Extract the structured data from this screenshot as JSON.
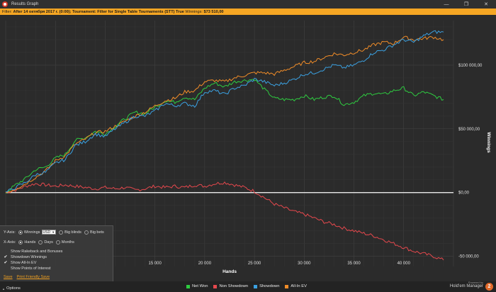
{
  "window": {
    "title": "Results Graph",
    "minimize_glyph": "—",
    "restore_glyph": "❐",
    "close_glyph": "✕"
  },
  "filter": {
    "prefix": "Filter:",
    "text": "After 14 октября 2017 г. (0:00); Tournament: Filter for Single Table Tournaments (STT) True",
    "winnings_label": "Winnings:",
    "winnings_value": "$73 510,00"
  },
  "chart_data": {
    "type": "line",
    "xlabel": "Hands",
    "ylabel": "Winnings",
    "xlim": [
      0,
      45000
    ],
    "ylim": [
      -58000,
      135000
    ],
    "x_ticks": [
      15000,
      20000,
      25000,
      30000,
      35000,
      40000
    ],
    "x_tick_labels": [
      "15 000",
      "20 000",
      "25 000",
      "30 000",
      "35 000",
      "40 000"
    ],
    "y_ticks": [
      -50000,
      0,
      50000,
      100000
    ],
    "y_tick_labels": [
      "-50 000,00",
      "$0,00",
      "$50 000,00",
      "$100 000,00"
    ],
    "grid": true,
    "legend_position": "bottom",
    "x": [
      0,
      1000,
      2000,
      3000,
      4000,
      5000,
      6000,
      7000,
      8000,
      9000,
      10000,
      11000,
      12000,
      13000,
      14000,
      15000,
      16000,
      17000,
      18000,
      19000,
      20000,
      21000,
      22000,
      23000,
      24000,
      25000,
      26000,
      27000,
      28000,
      29000,
      30000,
      31000,
      32000,
      33000,
      34000,
      35000,
      36000,
      37000,
      38000,
      39000,
      40000,
      41000,
      42000,
      43000,
      44000
    ],
    "series": [
      {
        "name": "Net Won",
        "color": "#2ecc40",
        "values": [
          0,
          6000,
          11000,
          18000,
          20000,
          27000,
          30000,
          41000,
          43000,
          48000,
          46000,
          52000,
          58000,
          63000,
          62000,
          67000,
          72000,
          71000,
          75000,
          73000,
          82000,
          86000,
          83000,
          87000,
          88000,
          89000,
          81000,
          74000,
          73000,
          73000,
          76000,
          73000,
          75000,
          76000,
          69000,
          71000,
          76000,
          78000,
          77000,
          80000,
          82000,
          76000,
          79000,
          76000,
          73000
        ]
      },
      {
        "name": "Non Showdown",
        "color": "#e5484d",
        "values": [
          0,
          2000,
          5000,
          7000,
          6000,
          5000,
          6000,
          5000,
          4000,
          3000,
          4000,
          3000,
          4000,
          2000,
          3000,
          5000,
          4000,
          5000,
          4000,
          6000,
          5000,
          7000,
          8000,
          6000,
          4000,
          1000,
          -4000,
          -9000,
          -12000,
          -15000,
          -17000,
          -20000,
          -23000,
          -25000,
          -28000,
          -30000,
          -32000,
          -34000,
          -37000,
          -40000,
          -43000,
          -46000,
          -48000,
          -50000,
          -53000
        ]
      },
      {
        "name": "Showdown",
        "color": "#3ba0e0",
        "values": [
          0,
          4000,
          8000,
          14000,
          16000,
          23000,
          26000,
          37000,
          40000,
          46000,
          44000,
          50000,
          55000,
          60000,
          60000,
          64000,
          70000,
          68000,
          70000,
          68000,
          79000,
          80000,
          77000,
          82000,
          84000,
          89000,
          87000,
          84000,
          86000,
          89000,
          93000,
          94000,
          97000,
          100000,
          98000,
          100000,
          104000,
          110000,
          112000,
          116000,
          120000,
          118000,
          123000,
          126000,
          126000
        ]
      },
      {
        "name": "All-In EV",
        "color": "#f08c28",
        "values": [
          0,
          3000,
          7000,
          12000,
          17000,
          25000,
          29000,
          38000,
          42000,
          47000,
          48000,
          52000,
          56000,
          60000,
          63000,
          68000,
          72000,
          74000,
          79000,
          80000,
          87000,
          88000,
          87000,
          90000,
          92000,
          94000,
          94000,
          93000,
          96000,
          99000,
          102000,
          103000,
          106000,
          109000,
          108000,
          110000,
          112000,
          116000,
          118000,
          117000,
          122000,
          120000,
          121000,
          122000,
          120000
        ]
      }
    ]
  },
  "options": {
    "y_axis_label": "Y-Axis:",
    "winnings_label": "Winnings",
    "currency": "USD",
    "big_blinds_label": "Big blinds",
    "big_bets_label": "Big bets",
    "x_axis_label": "X-Axis:",
    "hands_label": "Hands",
    "days_label": "Days",
    "months_label": "Months",
    "show_rakeback": "Show Rakeback and Bonuses",
    "showdown_winnings": "Showdown Winnings",
    "show_allin_ev": "Show All-In EV",
    "show_points": "Show Points of Interest",
    "save_link": "Save",
    "print_link": "Print Friendly Save"
  },
  "bottom": {
    "options_button": "Options"
  },
  "branding": {
    "powered_by": "Powered by",
    "product": "Hold'em Manager",
    "version": "2"
  }
}
